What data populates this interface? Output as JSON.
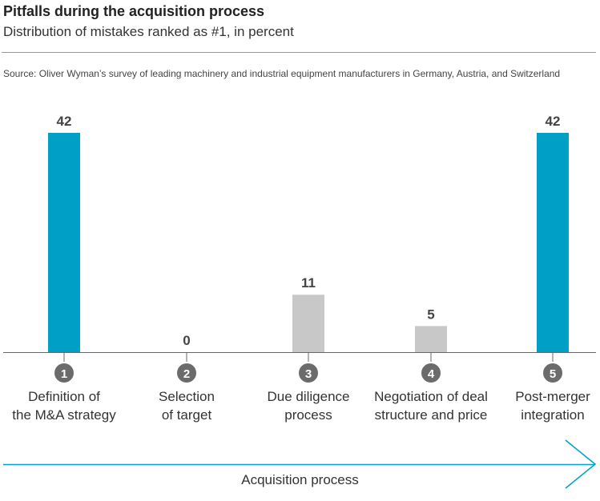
{
  "title": "Pitfalls during the acquisition process",
  "subtitle": "Distribution of mistakes ranked as #1, in percent",
  "source": "Source: Oliver Wyman’s survey of leading machinery and industrial equipment manufacturers in Germany, Austria, and Switzerland",
  "process_label": "Acquisition process",
  "colors": {
    "highlight": "#00a0c6",
    "neutral": "#c8c8c8",
    "step_circle": "#6b6b6b",
    "arrow": "#00a0c6",
    "axis": "#666666"
  },
  "chart_data": {
    "type": "bar",
    "categories": [
      "Definition of the M&A strategy",
      "Selection of target",
      "Due diligence process",
      "Negotiation of deal structure and price",
      "Post-merger integration"
    ],
    "category_lines": [
      [
        "Definition of",
        "the M&A strategy"
      ],
      [
        "Selection",
        "of target"
      ],
      [
        "Due diligence",
        "process"
      ],
      [
        "Negotiation of deal",
        "structure and price"
      ],
      [
        "Post-merger",
        "integration"
      ]
    ],
    "step_numbers": [
      "1",
      "2",
      "3",
      "4",
      "5"
    ],
    "values": [
      42,
      0,
      11,
      5,
      42
    ],
    "highlight": [
      true,
      false,
      false,
      false,
      true
    ],
    "ylim": [
      0,
      42
    ],
    "xlabel": "Acquisition process",
    "ylabel": "",
    "grid": false
  }
}
